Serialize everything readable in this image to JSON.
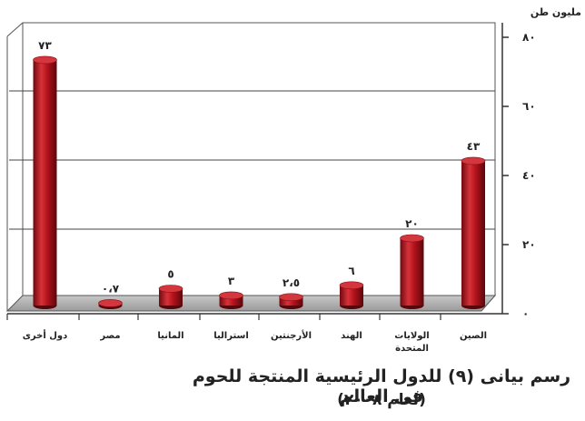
{
  "chart_data": {
    "type": "bar",
    "title": "رسم بيانى (٩) للدول الرئيسية المنتجة للحوم فى العالم",
    "subtitle": "(لعام ٢٠٠٨)",
    "ylabel": "مليون طن",
    "ylim": [
      0,
      80
    ],
    "yticks": [
      0,
      20,
      40,
      60,
      80
    ],
    "ytick_labels": [
      "٠",
      "٢٠",
      "٤٠",
      "٦٠",
      "٨٠"
    ],
    "grid": true,
    "categories": [
      "الصين",
      "الولايات المتحدة",
      "الهند",
      "الأرجنتين",
      "استراليا",
      "المانيا",
      "مصر",
      "دول أخرى"
    ],
    "values": [
      43,
      20,
      6,
      2.5,
      3,
      5,
      0.7,
      73
    ],
    "value_labels": [
      "٤٣",
      "٢٠",
      "٦",
      "٢،٥",
      "٣",
      "٥",
      "٠،٧",
      "٧٣"
    ],
    "bar_color": "#b3121b"
  }
}
